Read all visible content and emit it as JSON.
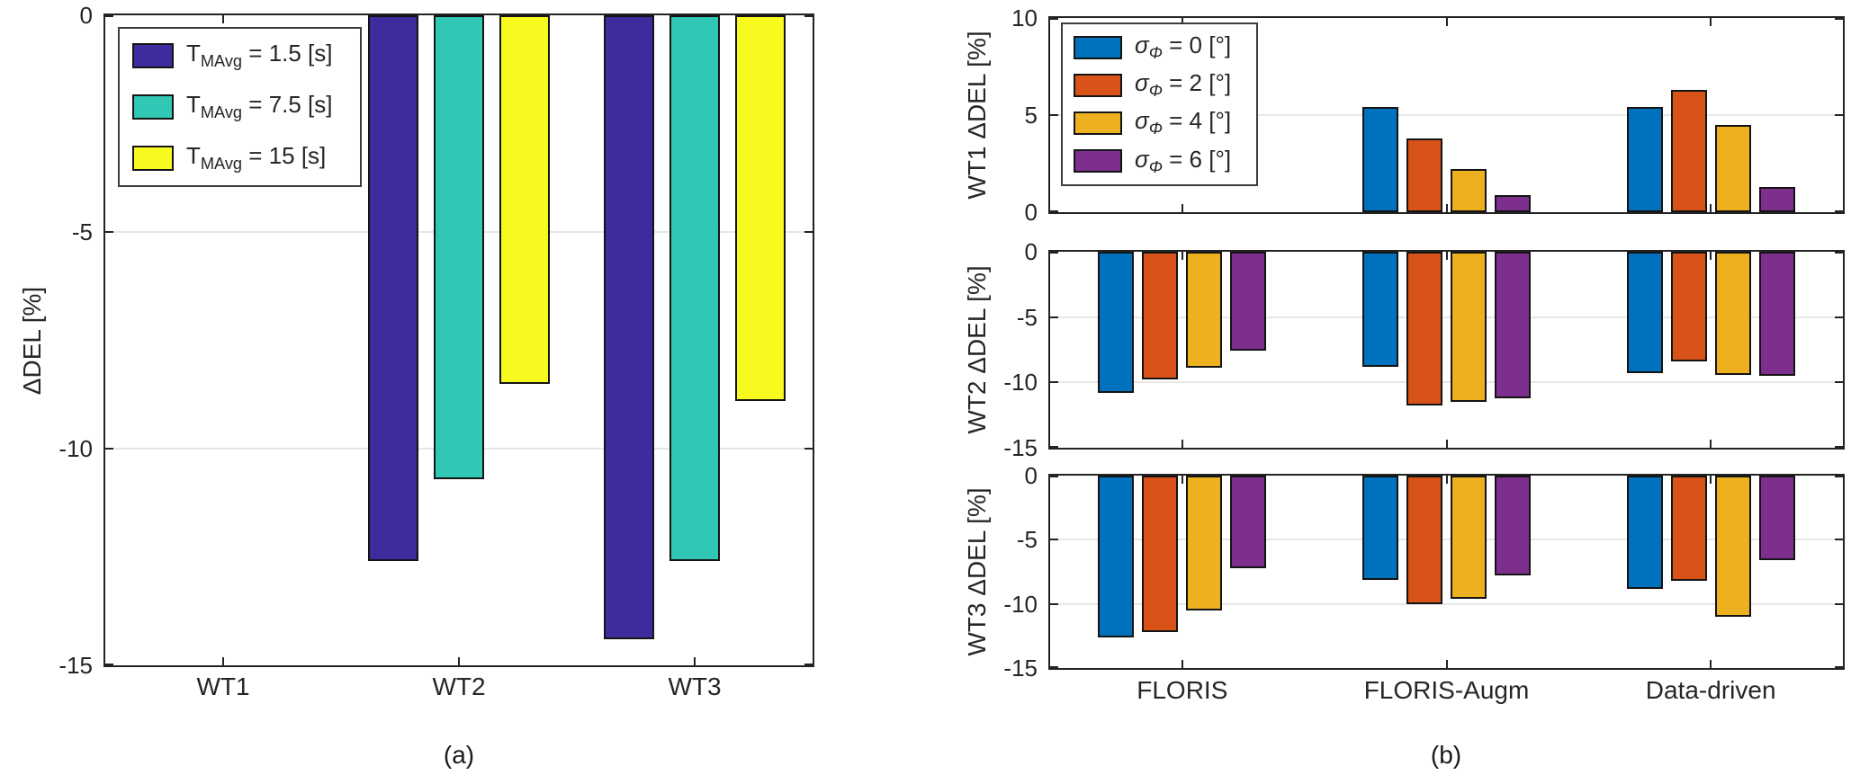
{
  "figure": {
    "background": "#ffffff"
  },
  "chart_data": [
    {
      "id": "panel-a",
      "type": "bar",
      "caption": "(a)",
      "ylabel": "ΔDEL [%]",
      "ylim": [
        -15,
        0
      ],
      "yticks": [
        0,
        -5,
        -10,
        -15
      ],
      "categories": [
        "WT1",
        "WT2",
        "WT3"
      ],
      "grid": "y",
      "legend_position": "top-left",
      "legend": [
        {
          "label": "TMAvg = 1.5 [s]",
          "pre": "T",
          "sub": "MAvg",
          "post": " = 1.5 [s]",
          "color": "#3d2c9e",
          "italic": false
        },
        {
          "label": "TMAvg = 7.5 [s]",
          "pre": "T",
          "sub": "MAvg",
          "post": " = 7.5 [s]",
          "color": "#30c7b4",
          "italic": false
        },
        {
          "label": "TMAvg = 15 [s]",
          "pre": "T",
          "sub": "MAvg",
          "post": " = 15 [s]",
          "color": "#f8f91e",
          "italic": false
        }
      ],
      "series": [
        {
          "name": "TMAvg = 1.5 [s]",
          "color": "#3d2c9e",
          "values": [
            0,
            -12.6,
            -14.4
          ]
        },
        {
          "name": "TMAvg = 7.5 [s]",
          "color": "#30c7b4",
          "values": [
            0,
            -10.7,
            -12.6
          ]
        },
        {
          "name": "TMAvg = 15 [s]",
          "color": "#f8f91e",
          "values": [
            0,
            -8.5,
            -8.9
          ]
        }
      ]
    },
    {
      "id": "panel-b",
      "type": "bar",
      "caption": "(b)",
      "categories": [
        "FLORIS",
        "FLORIS-Augm",
        "Data-driven"
      ],
      "grid": "y",
      "legend_position": "top-left",
      "legend": [
        {
          "label": "σΦ = 0 [°]",
          "pre": "σ",
          "sub": "Φ",
          "post": " = 0 [°]",
          "color": "#0072bd",
          "italic": true
        },
        {
          "label": "σΦ = 2 [°]",
          "pre": "σ",
          "sub": "Φ",
          "post": " = 2 [°]",
          "color": "#d95319",
          "italic": true
        },
        {
          "label": "σΦ = 4 [°]",
          "pre": "σ",
          "sub": "Φ",
          "post": " = 4 [°]",
          "color": "#edb120",
          "italic": true
        },
        {
          "label": "σΦ = 6 [°]",
          "pre": "σ",
          "sub": "Φ",
          "post": " = 6 [°]",
          "color": "#7e2f8e",
          "italic": true
        }
      ],
      "subplots": [
        {
          "ylabel": "WT1 ΔDEL [%]",
          "ylim": [
            0,
            10
          ],
          "yticks": [
            10,
            5,
            0
          ],
          "series": [
            {
              "name": "σΦ = 0 [°]",
              "color": "#0072bd",
              "values": [
                0,
                5.4,
                5.4
              ]
            },
            {
              "name": "σΦ = 2 [°]",
              "color": "#d95319",
              "values": [
                0,
                3.8,
                6.3
              ]
            },
            {
              "name": "σΦ = 4 [°]",
              "color": "#edb120",
              "values": [
                0,
                2.2,
                4.5
              ]
            },
            {
              "name": "σΦ = 6 [°]",
              "color": "#7e2f8e",
              "values": [
                0,
                0.9,
                1.3
              ]
            }
          ]
        },
        {
          "ylabel": "WT2 ΔDEL [%]",
          "ylim": [
            -15,
            0
          ],
          "yticks": [
            0,
            -5,
            -10,
            -15
          ],
          "series": [
            {
              "name": "σΦ = 0 [°]",
              "color": "#0072bd",
              "values": [
                -10.8,
                -8.8,
                -9.3
              ]
            },
            {
              "name": "σΦ = 2 [°]",
              "color": "#d95319",
              "values": [
                -9.8,
                -11.8,
                -8.4
              ]
            },
            {
              "name": "σΦ = 4 [°]",
              "color": "#edb120",
              "values": [
                -8.9,
                -11.5,
                -9.4
              ]
            },
            {
              "name": "σΦ = 6 [°]",
              "color": "#7e2f8e",
              "values": [
                -7.6,
                -11.2,
                -9.5
              ]
            }
          ]
        },
        {
          "ylabel": "WT3 ΔDEL [%]",
          "ylim": [
            -15,
            0
          ],
          "yticks": [
            0,
            -5,
            -10,
            -15
          ],
          "series": [
            {
              "name": "σΦ = 0 [°]",
              "color": "#0072bd",
              "values": [
                -12.6,
                -8.1,
                -8.8
              ]
            },
            {
              "name": "σΦ = 2 [°]",
              "color": "#d95319",
              "values": [
                -12.2,
                -10.0,
                -8.2
              ]
            },
            {
              "name": "σΦ = 4 [°]",
              "color": "#edb120",
              "values": [
                -10.5,
                -9.6,
                -11.0
              ]
            },
            {
              "name": "σΦ = 6 [°]",
              "color": "#7e2f8e",
              "values": [
                -7.2,
                -7.8,
                -6.6
              ]
            }
          ]
        }
      ]
    }
  ]
}
